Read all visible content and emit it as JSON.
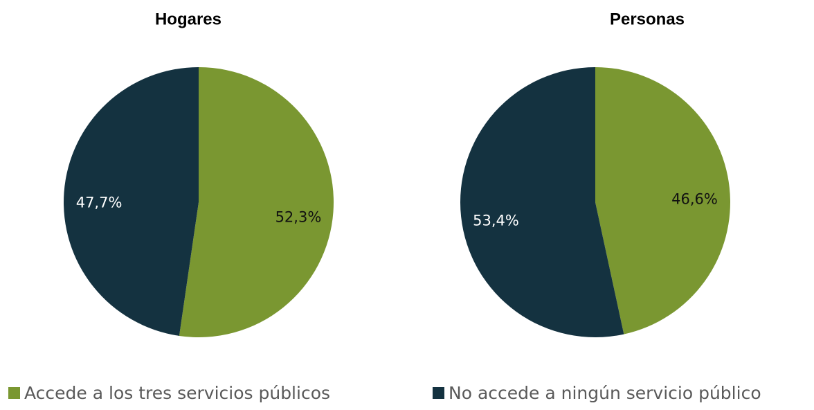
{
  "chart_data": [
    {
      "type": "pie",
      "title": "Hogares",
      "values": [
        52.3,
        47.7
      ],
      "value_labels": [
        "52,3%",
        "47,7%"
      ],
      "colors": [
        "#7a9731",
        "#143240"
      ],
      "label_colors": [
        "#111111",
        "#ffffff"
      ]
    },
    {
      "type": "pie",
      "title": "Personas",
      "values": [
        46.6,
        53.4
      ],
      "value_labels": [
        "46,6%",
        "53,4%"
      ],
      "colors": [
        "#7a9731",
        "#143240"
      ],
      "label_colors": [
        "#111111",
        "#ffffff"
      ]
    }
  ],
  "legend": {
    "categories": [
      "Accede a los tres servicios públicos",
      "No accede a ningún servicio público"
    ],
    "colors": [
      "#7a9731",
      "#143240"
    ]
  }
}
